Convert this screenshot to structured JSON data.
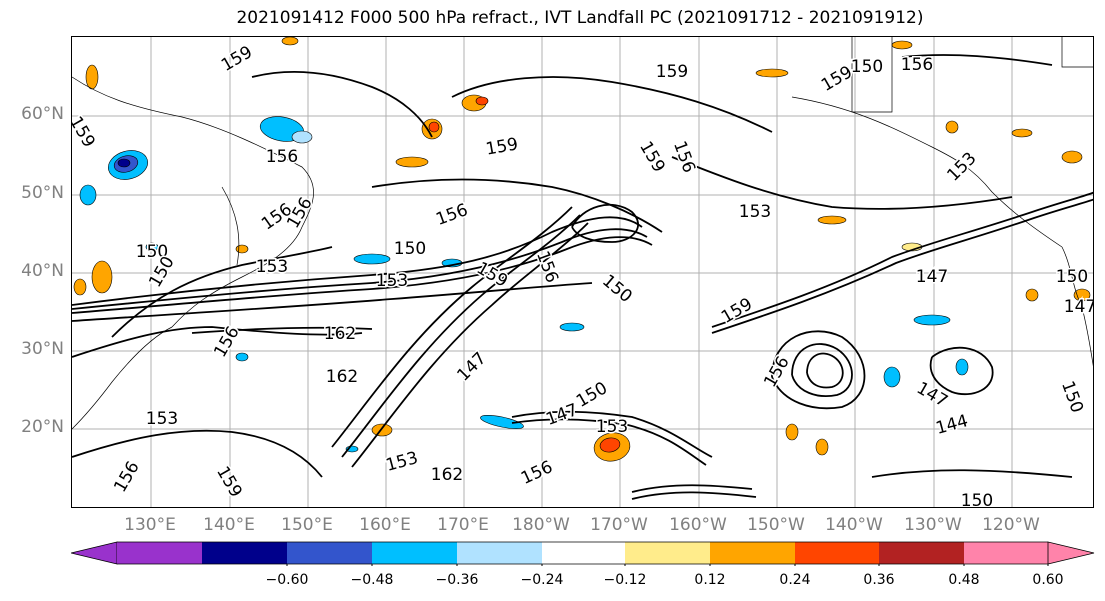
{
  "title": "2021091412 F000 500 hPa refract., IVT Landfall PC (2021091712 - 2021091912)",
  "map": {
    "lat_labels": [
      "60°N",
      "50°N",
      "40°N",
      "30°N",
      "20°N"
    ],
    "lon_labels": [
      "130°E",
      "140°E",
      "150°E",
      "160°E",
      "170°E",
      "180°W",
      "170°W",
      "160°W",
      "150°W",
      "140°W",
      "130°W",
      "120°W"
    ],
    "contour_labels": [
      "159",
      "159",
      "156",
      "156",
      "159",
      "156",
      "159",
      "153",
      "159",
      "156",
      "153",
      "150",
      "156",
      "150",
      "159",
      "153",
      "147",
      "150",
      "156",
      "147",
      "150",
      "147",
      "156",
      "162",
      "153",
      "147",
      "144",
      "156",
      "162",
      "153",
      "150",
      "150",
      "156",
      "156",
      "159",
      "150",
      "147",
      "150",
      "159",
      "153",
      "159",
      "153",
      "150",
      "156",
      "162"
    ],
    "colors": {
      "coastline": "#000000",
      "contour": "#000000",
      "gridline": "#b0b0b0",
      "tick_label": "#808080"
    }
  },
  "colorbar": {
    "colors": [
      "#9932cc",
      "#00008b",
      "#3355cc",
      "#00bfff",
      "#b0e2ff",
      "#ffffff",
      "#ffec8b",
      "#ffa500",
      "#ff4500",
      "#b22222",
      "#ff83aa"
    ],
    "tick_labels": [
      "−0.60",
      "−0.48",
      "−0.36",
      "−0.24",
      "−0.12",
      "0.12",
      "0.24",
      "0.36",
      "0.48",
      "0.60"
    ],
    "boundaries": [
      -0.6,
      -0.48,
      -0.36,
      -0.24,
      -0.12,
      0.12,
      0.24,
      0.36,
      0.48,
      0.6
    ],
    "extend": "both"
  }
}
